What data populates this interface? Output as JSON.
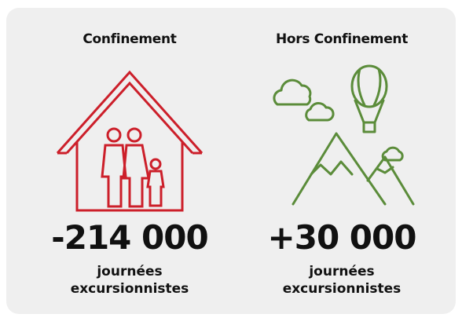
{
  "panels": [
    {
      "title": "Confinement",
      "value": "-214 000",
      "caption": [
        "journées",
        "excursionnistes"
      ]
    },
    {
      "title": "Hors Confinement",
      "value": "+30 000",
      "caption": [
        "journées",
        "excursionnistes"
      ]
    }
  ]
}
